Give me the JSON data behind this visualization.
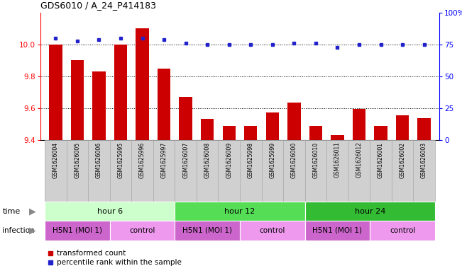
{
  "title": "GDS6010 / A_24_P414183",
  "samples": [
    "GSM1626004",
    "GSM1626005",
    "GSM1626006",
    "GSM1625995",
    "GSM1625996",
    "GSM1625997",
    "GSM1626007",
    "GSM1626008",
    "GSM1626009",
    "GSM1625998",
    "GSM1625999",
    "GSM1626000",
    "GSM1626010",
    "GSM1626011",
    "GSM1626012",
    "GSM1626001",
    "GSM1626002",
    "GSM1626003"
  ],
  "red_values": [
    10.0,
    9.9,
    9.83,
    10.0,
    10.1,
    9.85,
    9.67,
    9.535,
    9.49,
    9.49,
    9.575,
    9.635,
    9.49,
    9.43,
    9.595,
    9.49,
    9.555,
    9.54
  ],
  "blue_values": [
    80,
    78,
    79,
    80,
    80,
    79,
    76,
    75,
    75,
    75,
    75,
    76,
    76,
    73,
    75,
    75,
    75,
    75
  ],
  "ylim_left": [
    9.4,
    10.2
  ],
  "ylim_right": [
    0,
    100
  ],
  "yticks_left": [
    9.4,
    9.6,
    9.8,
    10.0
  ],
  "yticks_right": [
    0,
    25,
    50,
    75,
    100
  ],
  "ytick_labels_right": [
    "0",
    "25",
    "50",
    "75",
    "100%"
  ],
  "bar_color": "#cc0000",
  "dot_color": "#2222cc",
  "time_groups": [
    {
      "label": "hour 6",
      "start": 0,
      "end": 6,
      "color": "#ccffcc"
    },
    {
      "label": "hour 12",
      "start": 6,
      "end": 12,
      "color": "#55dd55"
    },
    {
      "label": "hour 24",
      "start": 12,
      "end": 18,
      "color": "#33bb33"
    }
  ],
  "infection_groups": [
    {
      "label": "H5N1 (MOI 1)",
      "start": 0,
      "end": 3,
      "color": "#cc66cc"
    },
    {
      "label": "control",
      "start": 3,
      "end": 6,
      "color": "#ee99ee"
    },
    {
      "label": "H5N1 (MOI 1)",
      "start": 6,
      "end": 9,
      "color": "#cc66cc"
    },
    {
      "label": "control",
      "start": 9,
      "end": 12,
      "color": "#ee99ee"
    },
    {
      "label": "H5N1 (MOI 1)",
      "start": 12,
      "end": 15,
      "color": "#cc66cc"
    },
    {
      "label": "control",
      "start": 15,
      "end": 18,
      "color": "#ee99ee"
    }
  ],
  "sample_box_color": "#d0d0d0",
  "sample_box_edge": "#aaaaaa",
  "legend_red_label": "transformed count",
  "legend_blue_label": "percentile rank within the sample",
  "background_color": "#ffffff"
}
